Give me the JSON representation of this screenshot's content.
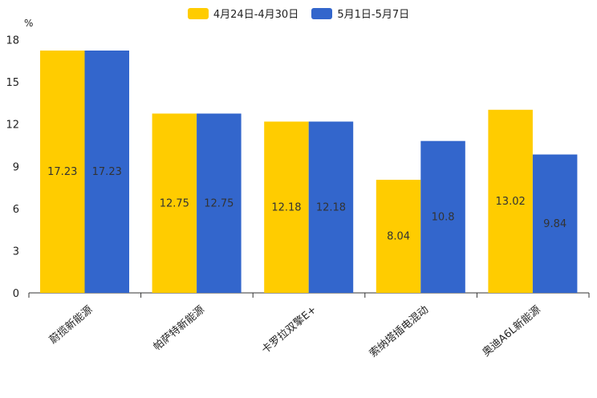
{
  "chart_data": {
    "type": "bar",
    "unit": "%",
    "categories": [
      "蔚揽新能源",
      "帕萨特新能源",
      "卡罗拉双擎E+",
      "索纳塔插电混动",
      "奥迪A6L新能源"
    ],
    "series": [
      {
        "name": "4月24日-4月30日",
        "color": "#FFCC00",
        "values": [
          17.23,
          12.75,
          12.18,
          8.04,
          13.02
        ],
        "labels": [
          "17.23",
          "12.75",
          "12.18",
          "8.04",
          "13.02"
        ]
      },
      {
        "name": "5月1日-5月7日",
        "color": "#3366CC",
        "values": [
          17.23,
          12.75,
          12.18,
          10.8,
          9.84
        ],
        "labels": [
          "17.23",
          "12.75",
          "12.18",
          "10.8",
          "9.84"
        ]
      }
    ],
    "ylim": [
      0,
      18
    ],
    "yticks": [
      "0",
      "3",
      "6",
      "9",
      "12",
      "15",
      "18"
    ],
    "legend_position": "top-center"
  }
}
